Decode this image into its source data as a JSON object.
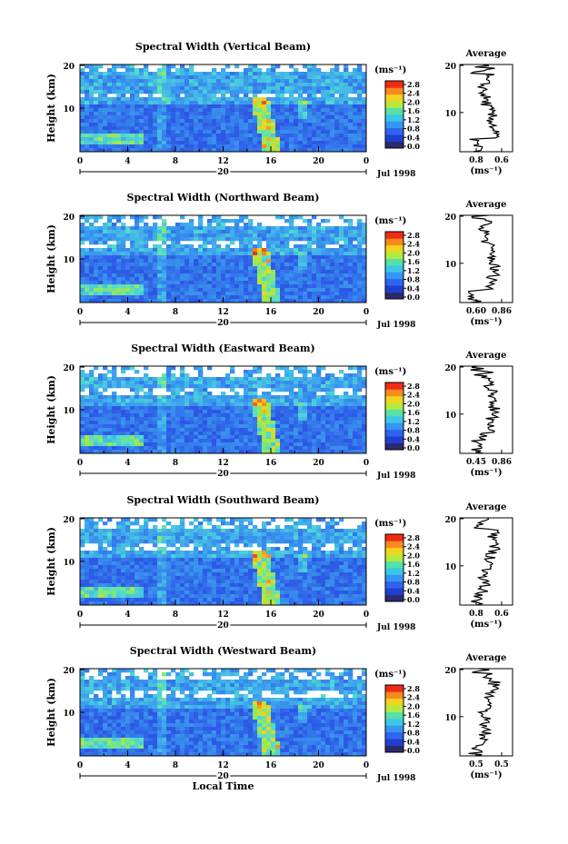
{
  "colors": {
    "background": "#ffffff",
    "heatmap_low": "#2e3fd6",
    "heatmap_mid": "#3aa7e8",
    "heatmap_high": "#ff3b1f"
  },
  "chart_data": [
    {
      "type": "heatmap",
      "title": "Spectral Width (Vertical Beam)",
      "ylabel": "Height (km)",
      "y_ticks": [
        "20",
        "10"
      ],
      "x_ticks": [
        "0",
        "4",
        "8",
        "12",
        "16",
        "20",
        "0"
      ],
      "date_day": "20",
      "date_label": "Jul 1998",
      "xlabel": "",
      "colorbar": {
        "unit": "(ms⁻¹)",
        "ticks": [
          "2.8",
          "2.4",
          "2.0",
          "1.6",
          "1.2",
          "0.8",
          "0.4",
          "0.0"
        ]
      },
      "average": {
        "title": "Average",
        "xlabel": "(ms⁻¹)",
        "x_ticks": [
          "0.8",
          "0.6"
        ],
        "y_ticks": [
          "20",
          "10"
        ]
      }
    },
    {
      "type": "heatmap",
      "title": "Spectral Width (Northward Beam)",
      "ylabel": "Height (km)",
      "y_ticks": [
        "20",
        "10"
      ],
      "x_ticks": [
        "0",
        "4",
        "8",
        "12",
        "16",
        "20",
        "0"
      ],
      "date_day": "20",
      "date_label": "Jul 1998",
      "xlabel": "",
      "colorbar": {
        "unit": "(ms⁻¹)",
        "ticks": [
          "2.8",
          "2.4",
          "2.0",
          "1.6",
          "1.2",
          "0.8",
          "0.4",
          "0.0"
        ]
      },
      "average": {
        "title": "Average",
        "xlabel": "(ms⁻¹)",
        "x_ticks": [
          "0.60",
          "0.86"
        ],
        "y_ticks": [
          "20",
          "10"
        ]
      }
    },
    {
      "type": "heatmap",
      "title": "Spectral Width (Eastward Beam)",
      "ylabel": "Height (km)",
      "y_ticks": [
        "20",
        "10"
      ],
      "x_ticks": [
        "0",
        "4",
        "8",
        "12",
        "16",
        "20",
        "0"
      ],
      "date_day": "20",
      "date_label": "Jul 1998",
      "xlabel": "",
      "colorbar": {
        "unit": "(ms⁻¹)",
        "ticks": [
          "2.8",
          "2.4",
          "2.0",
          "1.6",
          "1.2",
          "0.8",
          "0.4",
          "0.0"
        ]
      },
      "average": {
        "title": "Average",
        "xlabel": "(ms⁻¹)",
        "x_ticks": [
          "0.45",
          "0.86"
        ],
        "y_ticks": [
          "20",
          "10"
        ]
      }
    },
    {
      "type": "heatmap",
      "title": "Spectral Width (Southward Beam)",
      "ylabel": "Height (km)",
      "y_ticks": [
        "20",
        "10"
      ],
      "x_ticks": [
        "0",
        "4",
        "8",
        "12",
        "16",
        "20",
        "0"
      ],
      "date_day": "20",
      "date_label": "Jul 1998",
      "xlabel": "",
      "colorbar": {
        "unit": "(ms⁻¹)",
        "ticks": [
          "2.8",
          "2.4",
          "2.0",
          "1.6",
          "1.2",
          "0.8",
          "0.4",
          "0.0"
        ]
      },
      "average": {
        "title": "Average",
        "xlabel": "(ms⁻¹)",
        "x_ticks": [
          "0.8",
          "0.6"
        ],
        "y_ticks": [
          "20",
          "10"
        ]
      }
    },
    {
      "type": "heatmap",
      "title": "Spectral Width (Westward Beam)",
      "ylabel": "Height (km)",
      "y_ticks": [
        "20",
        "10"
      ],
      "x_ticks": [
        "0",
        "4",
        "8",
        "12",
        "16",
        "20",
        "0"
      ],
      "date_day": "20",
      "date_label": "Jul 1998",
      "xlabel": "Local Time",
      "colorbar": {
        "unit": "(ms⁻¹)",
        "ticks": [
          "2.8",
          "2.4",
          "2.0",
          "1.6",
          "1.2",
          "0.8",
          "0.4",
          "0.0"
        ]
      },
      "average": {
        "title": "Average",
        "xlabel": "(ms⁻¹)",
        "x_ticks": [
          "0.5",
          "0.5"
        ],
        "y_ticks": [
          "20",
          "10"
        ]
      }
    }
  ]
}
